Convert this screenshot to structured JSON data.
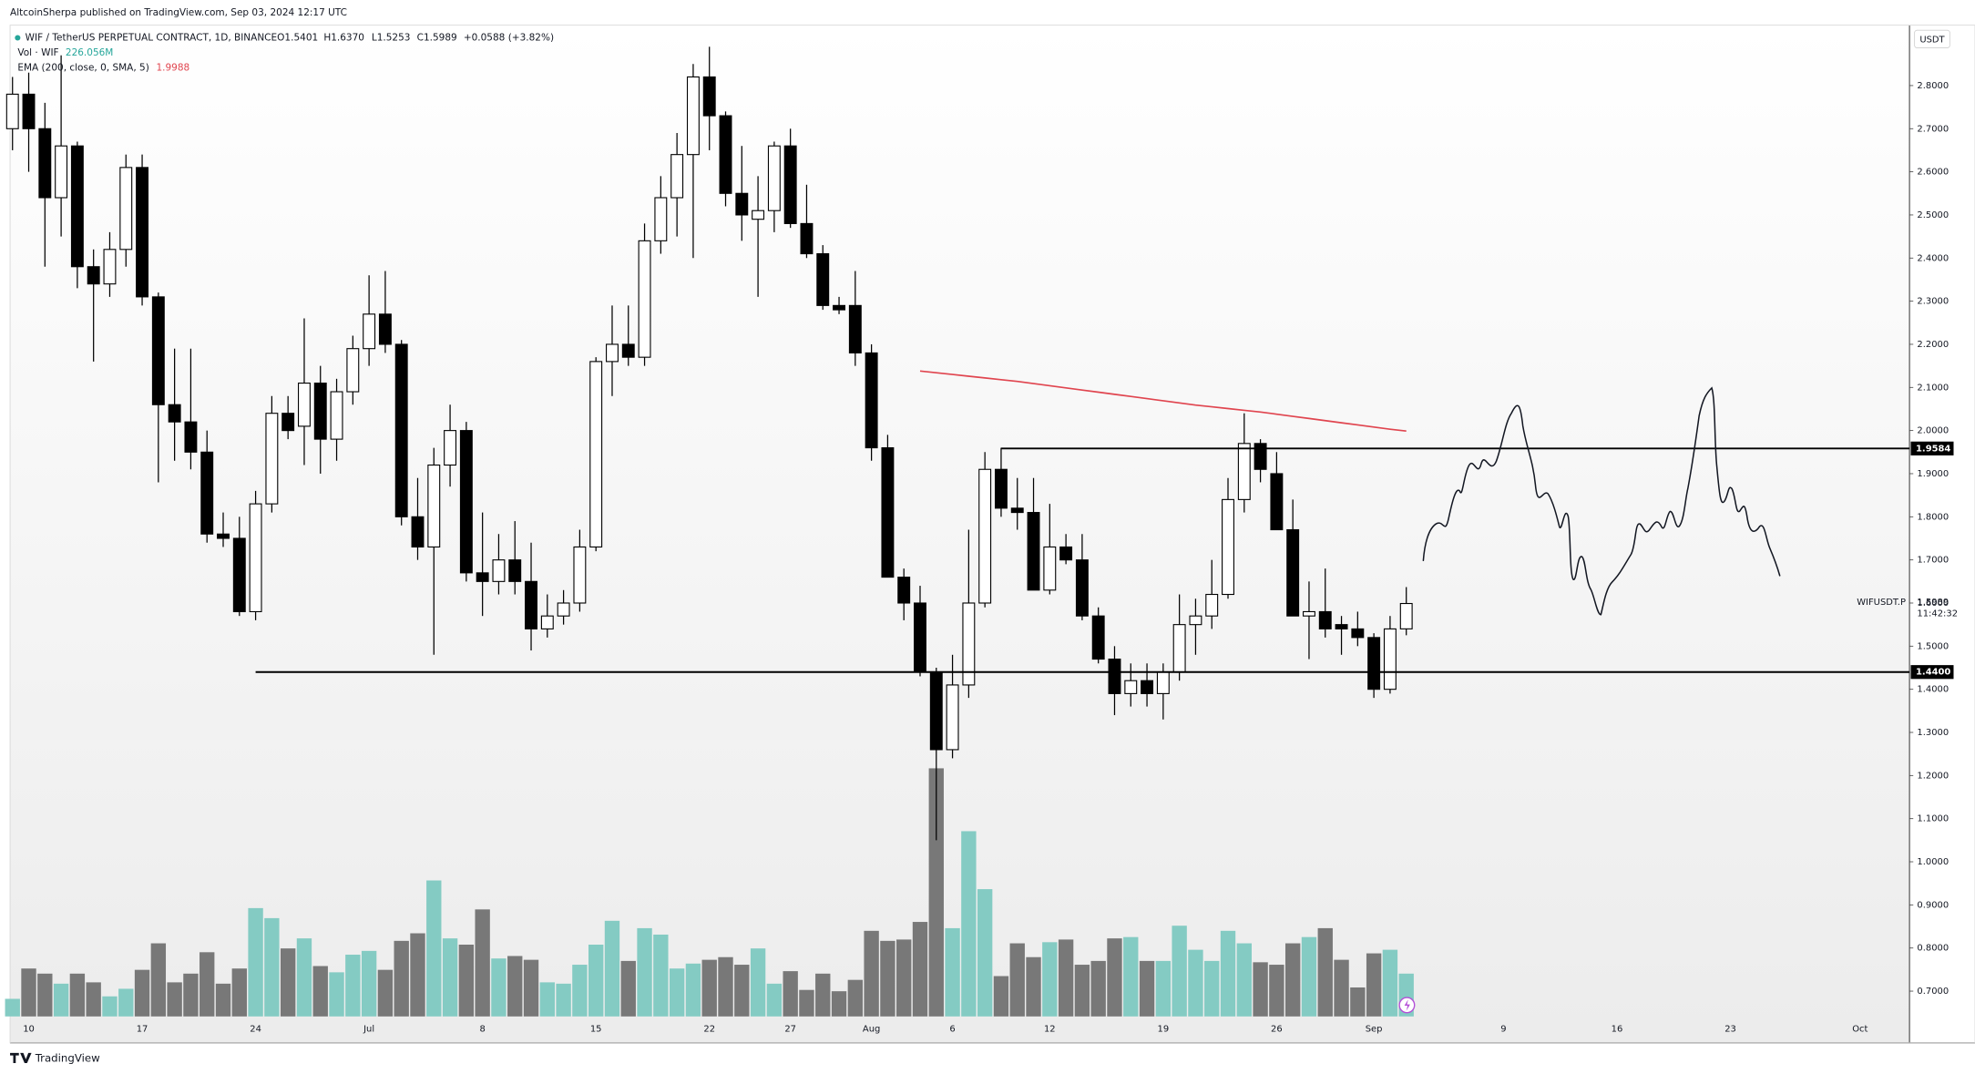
{
  "header": {
    "publisher": "AltcoinSherpa published on TradingView.com, Sep 03, 2024 12:17 UTC"
  },
  "chart_data": {
    "type": "candlestick",
    "title": "WIF / TetherUS PERPETUAL CONTRACT, 1D, BINANCE",
    "ohlc_legend": [
      "O1.5401",
      "H1.6370",
      "L1.5253",
      "C1.5989",
      "+0.0588 (+3.82%)"
    ],
    "volume_legend": {
      "name": "Vol · WIF",
      "value_label": "226.056M"
    },
    "currency": "USDT",
    "symbol_label": "WIFUSDT.P",
    "last_price_label": "1.5989",
    "countdown": "11:42:32",
    "up_color": "#ffffff",
    "down_color": "#000000",
    "volume_up_color": "#84cbc3",
    "volume_down_color": "#787878",
    "xlim": [
      -0.15,
      117.05
    ],
    "ylim": [
      0.58,
      2.94
    ],
    "yticks": [
      {
        "value": 2.8,
        "label": "2.8000"
      },
      {
        "value": 2.7,
        "label": "2.7000"
      },
      {
        "value": 2.6,
        "label": "2.6000"
      },
      {
        "value": 2.5,
        "label": "2.5000"
      },
      {
        "value": 2.4,
        "label": "2.4000"
      },
      {
        "value": 2.3,
        "label": "2.3000"
      },
      {
        "value": 2.2,
        "label": "2.2000"
      },
      {
        "value": 2.1,
        "label": "2.1000"
      },
      {
        "value": 2.0,
        "label": "2.0000"
      },
      {
        "value": 1.9,
        "label": "1.9000"
      },
      {
        "value": 1.8,
        "label": "1.8000"
      },
      {
        "value": 1.7,
        "label": "1.7000"
      },
      {
        "value": 1.6,
        "label": "1.6000"
      },
      {
        "value": 1.5,
        "label": "1.5000"
      },
      {
        "value": 1.4,
        "label": "1.4000"
      },
      {
        "value": 1.3,
        "label": "1.3000"
      },
      {
        "value": 1.2,
        "label": "1.2000"
      },
      {
        "value": 1.1,
        "label": "1.1000"
      },
      {
        "value": 1.0,
        "label": "1.0000"
      },
      {
        "value": 0.9,
        "label": "0.9000"
      },
      {
        "value": 0.8,
        "label": "0.8000"
      },
      {
        "value": 0.7,
        "label": "0.7000"
      }
    ],
    "hlines": [
      {
        "value": 1.9584,
        "label": "1.9584"
      },
      {
        "value": 1.44,
        "label": "1.4400"
      }
    ],
    "categories": [
      null,
      "10",
      null,
      null,
      null,
      null,
      null,
      null,
      "17",
      null,
      null,
      null,
      null,
      null,
      null,
      "24",
      null,
      null,
      null,
      null,
      null,
      null,
      "Jul",
      null,
      null,
      null,
      null,
      null,
      null,
      "8",
      null,
      null,
      null,
      null,
      null,
      null,
      "15",
      null,
      null,
      null,
      null,
      null,
      null,
      "22",
      null,
      null,
      null,
      null,
      "27",
      null,
      null,
      null,
      null,
      "Aug",
      null,
      null,
      null,
      null,
      "6",
      null,
      null,
      null,
      null,
      null,
      "12",
      null,
      null,
      null,
      null,
      null,
      null,
      "19",
      null,
      null,
      null,
      null,
      null,
      null,
      "26",
      null,
      null,
      null,
      null,
      null,
      "Sep",
      null,
      null,
      null,
      null,
      null,
      null,
      null,
      "9",
      null,
      null,
      null,
      null,
      null,
      null,
      "16",
      null,
      null,
      null,
      null,
      null,
      null,
      "23",
      null,
      null,
      null,
      null,
      null,
      null,
      null,
      "Oct",
      null,
      null,
      null
    ],
    "open": [
      2.7,
      2.78,
      2.7,
      2.54,
      2.66,
      2.38,
      2.34,
      2.42,
      2.61,
      2.31,
      2.06,
      2.02,
      1.95,
      1.76,
      1.75,
      1.58,
      1.83,
      2.04,
      2.01,
      2.11,
      1.98,
      2.09,
      2.19,
      2.27,
      2.2,
      1.8,
      1.73,
      1.92,
      2.0,
      1.67,
      1.65,
      1.7,
      1.65,
      1.54,
      1.57,
      1.6,
      1.73,
      2.16,
      2.2,
      2.17,
      2.44,
      2.54,
      2.64,
      2.82,
      2.73,
      2.55,
      2.49,
      2.51,
      2.66,
      2.48,
      2.41,
      2.29,
      2.29,
      2.18,
      1.96,
      1.66,
      1.6,
      1.44,
      1.26,
      1.41,
      1.6,
      1.91,
      1.82,
      1.81,
      1.63,
      1.73,
      1.7,
      1.57,
      1.47,
      1.39,
      1.42,
      1.39,
      1.44,
      1.55,
      1.57,
      1.62,
      1.84,
      1.97,
      1.9,
      1.77,
      1.57,
      1.58,
      1.55,
      1.54,
      1.52,
      1.4,
      1.5401,
      null,
      null,
      null,
      null,
      null,
      null,
      null,
      null,
      null,
      null,
      null,
      null,
      null,
      null,
      null,
      null,
      null,
      null,
      null,
      null,
      null,
      null,
      null,
      null,
      null,
      null,
      null,
      null,
      null,
      null,
      null
    ],
    "high": [
      2.82,
      2.83,
      2.76,
      2.87,
      2.67,
      2.42,
      2.46,
      2.64,
      2.64,
      2.32,
      2.19,
      2.19,
      2.0,
      1.81,
      1.8,
      1.86,
      2.08,
      2.08,
      2.26,
      2.15,
      2.12,
      2.22,
      2.36,
      2.37,
      2.21,
      1.89,
      1.96,
      2.06,
      2.02,
      1.81,
      1.76,
      1.79,
      1.74,
      1.62,
      1.63,
      1.77,
      2.17,
      2.29,
      2.29,
      2.48,
      2.59,
      2.69,
      2.85,
      2.89,
      2.74,
      2.66,
      2.59,
      2.67,
      2.7,
      2.57,
      2.43,
      2.31,
      2.37,
      2.2,
      1.99,
      1.68,
      1.64,
      1.45,
      1.48,
      1.77,
      1.95,
      1.96,
      1.89,
      1.89,
      1.83,
      1.76,
      1.76,
      1.59,
      1.5,
      1.46,
      1.46,
      1.46,
      1.62,
      1.61,
      1.7,
      1.89,
      2.04,
      1.98,
      1.95,
      1.84,
      1.65,
      1.68,
      1.57,
      1.58,
      1.53,
      1.57,
      1.637,
      null,
      null,
      null,
      null,
      null,
      null,
      null,
      null,
      null,
      null,
      null,
      null,
      null,
      null,
      null,
      null,
      null,
      null,
      null,
      null,
      null,
      null,
      null,
      null,
      null,
      null,
      null,
      null,
      null,
      null,
      null
    ],
    "low": [
      2.65,
      2.6,
      2.38,
      2.45,
      2.33,
      2.16,
      2.31,
      2.38,
      2.29,
      1.88,
      1.93,
      1.91,
      1.74,
      1.73,
      1.57,
      1.56,
      1.81,
      1.98,
      1.92,
      1.9,
      1.93,
      2.06,
      2.15,
      2.18,
      1.78,
      1.7,
      1.48,
      1.87,
      1.65,
      1.57,
      1.62,
      1.62,
      1.49,
      1.52,
      1.55,
      1.58,
      1.72,
      2.08,
      2.15,
      2.15,
      2.41,
      2.45,
      2.4,
      2.65,
      2.52,
      2.44,
      2.31,
      2.46,
      2.47,
      2.4,
      2.28,
      2.27,
      2.15,
      1.93,
      1.66,
      1.56,
      1.43,
      1.05,
      1.24,
      1.38,
      1.59,
      1.8,
      1.77,
      1.63,
      1.62,
      1.69,
      1.56,
      1.46,
      1.34,
      1.36,
      1.36,
      1.33,
      1.42,
      1.48,
      1.54,
      1.61,
      1.81,
      1.88,
      1.77,
      1.57,
      1.47,
      1.52,
      1.48,
      1.5,
      1.38,
      1.39,
      1.5253,
      null,
      null,
      null,
      null,
      null,
      null,
      null,
      null,
      null,
      null,
      null,
      null,
      null,
      null,
      null,
      null,
      null,
      null,
      null,
      null,
      null,
      null,
      null,
      null,
      null,
      null,
      null,
      null,
      null,
      null,
      null
    ],
    "close": [
      2.78,
      2.7,
      2.54,
      2.66,
      2.38,
      2.34,
      2.42,
      2.61,
      2.31,
      2.06,
      2.02,
      1.95,
      1.76,
      1.75,
      1.58,
      1.83,
      2.04,
      2.0,
      2.11,
      1.98,
      2.09,
      2.19,
      2.27,
      2.2,
      1.8,
      1.73,
      1.92,
      2.0,
      1.67,
      1.65,
      1.7,
      1.65,
      1.54,
      1.57,
      1.6,
      1.73,
      2.16,
      2.2,
      2.17,
      2.44,
      2.54,
      2.64,
      2.82,
      2.73,
      2.55,
      2.5,
      2.51,
      2.66,
      2.48,
      2.41,
      2.29,
      2.28,
      2.18,
      1.96,
      1.66,
      1.6,
      1.44,
      1.26,
      1.41,
      1.6,
      1.91,
      1.82,
      1.81,
      1.63,
      1.73,
      1.7,
      1.57,
      1.47,
      1.39,
      1.42,
      1.39,
      1.44,
      1.55,
      1.57,
      1.62,
      1.84,
      1.97,
      1.91,
      1.77,
      1.57,
      1.58,
      1.54,
      1.54,
      1.52,
      1.4,
      1.54,
      1.5989,
      null,
      null,
      null,
      null,
      null,
      null,
      null,
      null,
      null,
      null,
      null,
      null,
      null,
      null,
      null,
      null,
      null,
      null,
      null,
      null,
      null,
      null,
      null,
      null,
      null,
      null,
      null,
      null,
      null,
      null,
      null
    ],
    "volume": [
      93,
      253,
      226,
      173,
      226,
      180,
      106,
      146,
      246,
      386,
      180,
      226,
      339,
      173,
      253,
      572,
      519,
      359,
      412,
      266,
      233,
      326,
      346,
      246,
      399,
      439,
      718,
      412,
      379,
      565,
      306,
      319,
      299,
      180,
      173,
      273,
      379,
      505,
      293,
      466,
      432,
      253,
      279,
      299,
      313,
      273,
      359,
      173,
      239,
      140,
      226,
      133,
      193,
      452,
      399,
      406,
      499,
      1310,
      466,
      978,
      672,
      213,
      386,
      313,
      392,
      406,
      273,
      293,
      412,
      419,
      293,
      293,
      479,
      352,
      293,
      452,
      386,
      286,
      273,
      386,
      419,
      466,
      299,
      153,
      333,
      352,
      226.056,
      null,
      null,
      null,
      null,
      null,
      null,
      null,
      null,
      null,
      null,
      null,
      null,
      null,
      null,
      null,
      null,
      null,
      null,
      null,
      null,
      null,
      null,
      null,
      null,
      null,
      null,
      null,
      null,
      null,
      null,
      null
    ],
    "ema": {
      "name": "EMA (200, close, 0, SMA, 5)",
      "color": "#e0454f",
      "last_label": "1.9988",
      "values": [
        null,
        null,
        null,
        null,
        null,
        null,
        null,
        null,
        null,
        null,
        null,
        null,
        null,
        null,
        null,
        null,
        null,
        null,
        null,
        null,
        null,
        null,
        null,
        null,
        null,
        null,
        null,
        null,
        null,
        null,
        null,
        null,
        null,
        null,
        null,
        null,
        null,
        null,
        null,
        null,
        null,
        null,
        null,
        null,
        null,
        null,
        null,
        null,
        null,
        null,
        null,
        null,
        null,
        null,
        null,
        null,
        2.138,
        2.134,
        2.13,
        2.126,
        2.122,
        2.118,
        2.114,
        2.109,
        2.104,
        2.099,
        2.094,
        2.089,
        2.084,
        2.079,
        2.074,
        2.069,
        2.064,
        2.059,
        2.055,
        2.051,
        2.047,
        2.043,
        2.038,
        2.033,
        2.028,
        2.023,
        2.018,
        2.013,
        2.008,
        2.003,
        1.9988,
        null,
        null,
        null,
        null,
        null,
        null,
        null,
        null,
        null,
        null,
        null,
        null,
        null,
        null,
        null,
        null,
        null,
        null,
        null,
        null,
        null,
        null,
        null,
        null,
        null,
        null,
        null,
        null,
        null,
        null,
        null
      ]
    }
  },
  "footer": {
    "brand": "TradingView"
  }
}
